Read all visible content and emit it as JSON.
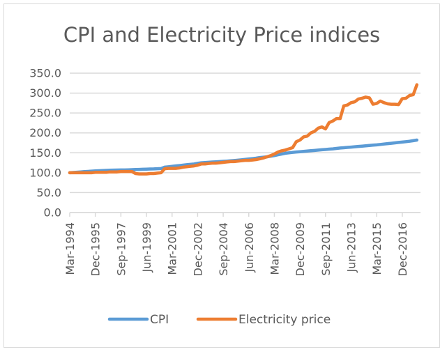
{
  "chart_data": {
    "type": "line",
    "title": "CPI and Electricity Price indices",
    "xlabel": "",
    "ylabel": "",
    "frequency": "quarterly",
    "x_start": "Mar-1994",
    "x_end": "Dec-2017",
    "x_tick_labels": [
      "Mar-1994",
      "Dec-1995",
      "Sep-1997",
      "Jun-1999",
      "Mar-2001",
      "Dec-2002",
      "Sep-2004",
      "Jun-2006",
      "Mar-2008",
      "Dec-2009",
      "Sep-2011",
      "Jun-2013",
      "Mar-2015",
      "Dec-2016"
    ],
    "y_tick_labels": [
      "0.0",
      "50.0",
      "100.0",
      "150.0",
      "200.0",
      "250.0",
      "300.0",
      "350.0"
    ],
    "ylim": [
      0,
      350
    ],
    "grid": true,
    "legend": "bottom",
    "series": [
      {
        "name": "CPI",
        "color": "#5b9bd5",
        "values": [
          100,
          100.7,
          101.4,
          102,
          102.7,
          103.3,
          104,
          104.6,
          105,
          105.4,
          105.8,
          106.2,
          106.5,
          106.8,
          107,
          107,
          107.3,
          107.6,
          108,
          108.3,
          108.6,
          109,
          109.3,
          109.6,
          110,
          110.5,
          114,
          115,
          116,
          117,
          118,
          119,
          120,
          121,
          122,
          123.5,
          125,
          125.6,
          126.2,
          126.8,
          127.4,
          128,
          128.6,
          129.2,
          129.8,
          130.5,
          131.5,
          132.5,
          133.5,
          134.5,
          135.5,
          136.5,
          138,
          139,
          140,
          141.5,
          143,
          145,
          147,
          149,
          150,
          151,
          152,
          152.8,
          153.6,
          154.4,
          155.2,
          156,
          156.8,
          157.6,
          158.4,
          159.2,
          160,
          161,
          162,
          162.8,
          163.6,
          164.4,
          165.2,
          166,
          166.8,
          167.6,
          168.4,
          169.2,
          170,
          171,
          172,
          173,
          174,
          175,
          176,
          177,
          178,
          179,
          180.5,
          182
        ]
      },
      {
        "name": "Electricity price",
        "color": "#ed7d31",
        "values": [
          100,
          100,
          100,
          100,
          100,
          100,
          100,
          101,
          101,
          101,
          101,
          102,
          102,
          102,
          103,
          103,
          103,
          103,
          98,
          97,
          97,
          97,
          98,
          98,
          99,
          100,
          110,
          111,
          111,
          111,
          112,
          114,
          115,
          116,
          117,
          119,
          122,
          122,
          123,
          124,
          124,
          125,
          126,
          127,
          128,
          128,
          129,
          130,
          131,
          131,
          132,
          133,
          135,
          137,
          140,
          143,
          147,
          152,
          155,
          157,
          160,
          163,
          178,
          182,
          190,
          192,
          200,
          204,
          212,
          215,
          210,
          226,
          230,
          236,
          236,
          268,
          270,
          276,
          278,
          285,
          287,
          290,
          288,
          272,
          274,
          280,
          276,
          273,
          272,
          272,
          271,
          286,
          287,
          294,
          296,
          321
        ]
      }
    ]
  }
}
